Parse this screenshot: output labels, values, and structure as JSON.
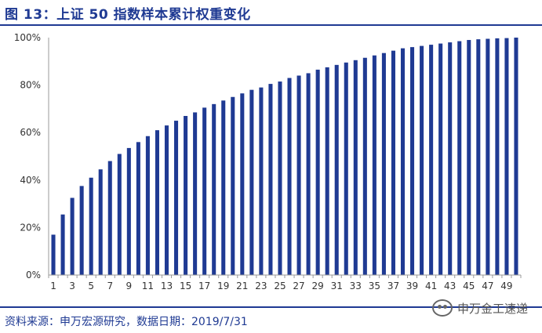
{
  "title": "图 13：上证 50 指数样本累计权重变化",
  "source": "资料来源：申万宏源研究，数据日期：2019/7/31",
  "watermark": "申万金工速递",
  "colors": {
    "bar": "#1f3a93",
    "axis": "#999999",
    "title": "#1f3a93"
  },
  "chart_data": {
    "type": "bar",
    "title": "",
    "xlabel": "",
    "ylabel": "",
    "ylim": [
      0,
      100
    ],
    "yticks": [
      "0%",
      "20%",
      "40%",
      "60%",
      "80%",
      "100%"
    ],
    "xtick_labels": [
      "1",
      "3",
      "5",
      "7",
      "9",
      "11",
      "13",
      "15",
      "17",
      "19",
      "21",
      "23",
      "25",
      "27",
      "29",
      "31",
      "33",
      "35",
      "37",
      "39",
      "41",
      "43",
      "45",
      "47",
      "49"
    ],
    "categories": [
      1,
      2,
      3,
      4,
      5,
      6,
      7,
      8,
      9,
      10,
      11,
      12,
      13,
      14,
      15,
      16,
      17,
      18,
      19,
      20,
      21,
      22,
      23,
      24,
      25,
      26,
      27,
      28,
      29,
      30,
      31,
      32,
      33,
      34,
      35,
      36,
      37,
      38,
      39,
      40,
      41,
      42,
      43,
      44,
      45,
      46,
      47,
      48,
      49,
      50
    ],
    "values": [
      17,
      25.5,
      32.5,
      37.5,
      41,
      44.5,
      48,
      51,
      53.5,
      56,
      58.5,
      61,
      63,
      65,
      67,
      68.5,
      70.5,
      72,
      73.5,
      75,
      76.5,
      78,
      79,
      80.5,
      81.5,
      83,
      84,
      85,
      86.5,
      87.5,
      88.5,
      89.5,
      90.5,
      91.5,
      92.5,
      93.5,
      94.5,
      95.5,
      96,
      96.5,
      97,
      97.5,
      98,
      98.5,
      99,
      99.3,
      99.5,
      99.7,
      99.8,
      100
    ],
    "grid": false,
    "legend": "none"
  }
}
